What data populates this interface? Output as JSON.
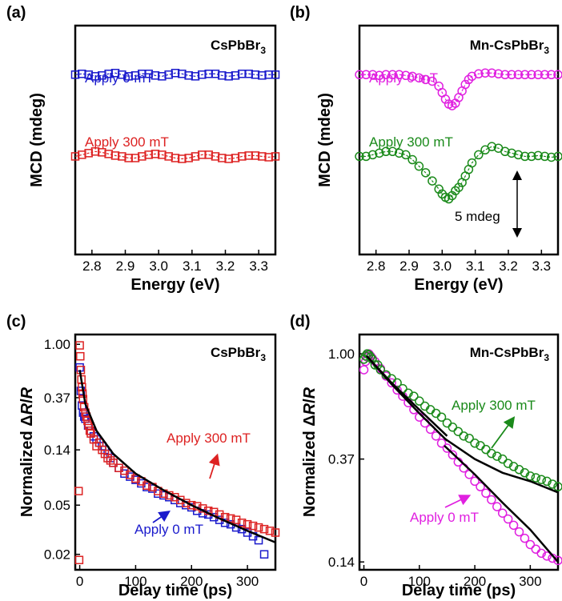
{
  "chart_data": [
    {
      "panel": "(a)",
      "type": "scatter",
      "title": "CsPbBr3",
      "xlabel": "Energy (eV)",
      "ylabel": "MCD (mdeg)",
      "xlim": [
        2.75,
        3.35
      ],
      "ylim": [
        -11,
        3
      ],
      "xticks": [
        2.8,
        2.9,
        3.0,
        3.1,
        3.2,
        3.3
      ],
      "xtick_labels": [
        "2.8",
        "2.9",
        "3.0",
        "3.1",
        "3.2",
        "3.3"
      ],
      "series": [
        {
          "name": "Apply 0 mT",
          "color": "#1a1acc",
          "marker": "square",
          "offset": 0,
          "x": [
            2.75,
            2.77,
            2.79,
            2.81,
            2.83,
            2.85,
            2.87,
            2.89,
            2.91,
            2.93,
            2.95,
            2.97,
            2.99,
            3.01,
            3.03,
            3.05,
            3.07,
            3.09,
            3.11,
            3.13,
            3.15,
            3.17,
            3.19,
            3.21,
            3.23,
            3.25,
            3.27,
            3.29,
            3.31,
            3.33,
            3.35
          ],
          "y": [
            0.0,
            0.05,
            0.0,
            -0.1,
            -0.05,
            0.05,
            0.1,
            0.0,
            -0.1,
            -0.05,
            0.05,
            0.05,
            -0.05,
            -0.1,
            0.0,
            0.1,
            0.05,
            -0.05,
            -0.1,
            0.0,
            0.05,
            0.05,
            -0.05,
            -0.1,
            -0.05,
            0.05,
            0.05,
            0.0,
            -0.05,
            0.0,
            0.0
          ]
        },
        {
          "name": "Apply 300 mT",
          "color": "#dd2222",
          "marker": "square",
          "offset": -5,
          "x": [
            2.75,
            2.77,
            2.79,
            2.81,
            2.83,
            2.85,
            2.87,
            2.89,
            2.91,
            2.93,
            2.95,
            2.97,
            2.99,
            3.01,
            3.03,
            3.05,
            3.07,
            3.09,
            3.11,
            3.13,
            3.15,
            3.17,
            3.19,
            3.21,
            3.23,
            3.25,
            3.27,
            3.29,
            3.31,
            3.33,
            3.35
          ],
          "y": [
            0.0,
            0.1,
            0.2,
            0.3,
            0.25,
            0.15,
            0.05,
            0.0,
            -0.1,
            -0.1,
            0.0,
            0.1,
            0.15,
            0.1,
            0.0,
            -0.1,
            -0.15,
            -0.1,
            0.0,
            0.1,
            0.1,
            0.0,
            -0.1,
            -0.15,
            -0.1,
            0.0,
            0.05,
            0.05,
            0.0,
            -0.05,
            0.0
          ]
        }
      ]
    },
    {
      "panel": "(b)",
      "type": "scatter",
      "title": "Mn-CsPbBr3",
      "xlabel": "Energy (eV)",
      "ylabel": "MCD (mdeg)",
      "xlim": [
        2.75,
        3.35
      ],
      "ylim": [
        -11,
        3
      ],
      "xticks": [
        2.8,
        2.9,
        3.0,
        3.1,
        3.2,
        3.3
      ],
      "xtick_labels": [
        "2.8",
        "2.9",
        "3.0",
        "3.1",
        "3.2",
        "3.3"
      ],
      "scale_bar": {
        "label": "5 mdeg",
        "x": 3.22,
        "y_from": -10.2,
        "y_to": -5.2
      },
      "series": [
        {
          "name": "Apply 0 mT",
          "color": "#e020e0",
          "marker": "circle",
          "offset": 0,
          "x": [
            2.75,
            2.77,
            2.79,
            2.81,
            2.83,
            2.85,
            2.87,
            2.89,
            2.91,
            2.93,
            2.95,
            2.97,
            2.99,
            3.0,
            3.01,
            3.02,
            3.03,
            3.04,
            3.05,
            3.06,
            3.07,
            3.08,
            3.09,
            3.11,
            3.13,
            3.15,
            3.17,
            3.19,
            3.21,
            3.23,
            3.25,
            3.27,
            3.29,
            3.31,
            3.33,
            3.35
          ],
          "y": [
            0.0,
            0.0,
            0.0,
            -0.05,
            0.0,
            0.0,
            0.0,
            -0.05,
            -0.1,
            -0.2,
            -0.3,
            -0.4,
            -0.7,
            -1.1,
            -1.5,
            -1.8,
            -1.9,
            -1.75,
            -1.4,
            -1.0,
            -0.6,
            -0.3,
            -0.1,
            0.05,
            0.1,
            0.1,
            0.05,
            0.0,
            0.0,
            0.0,
            0.0,
            0.0,
            0.0,
            0.0,
            0.0,
            0.0
          ]
        },
        {
          "name": "Apply 300 mT",
          "color": "#1a8a1a",
          "marker": "circle",
          "offset": -5,
          "x": [
            2.75,
            2.77,
            2.79,
            2.81,
            2.83,
            2.85,
            2.87,
            2.89,
            2.91,
            2.93,
            2.95,
            2.97,
            2.99,
            3.0,
            3.01,
            3.02,
            3.03,
            3.04,
            3.05,
            3.06,
            3.07,
            3.08,
            3.09,
            3.11,
            3.13,
            3.15,
            3.17,
            3.19,
            3.21,
            3.23,
            3.25,
            3.27,
            3.29,
            3.31,
            3.33,
            3.35
          ],
          "y": [
            0.0,
            0.0,
            0.1,
            0.2,
            0.3,
            0.3,
            0.2,
            0.1,
            -0.2,
            -0.6,
            -1.0,
            -1.5,
            -2.0,
            -2.3,
            -2.5,
            -2.6,
            -2.4,
            -2.1,
            -1.9,
            -1.6,
            -1.2,
            -0.8,
            -0.4,
            0.1,
            0.4,
            0.6,
            0.5,
            0.3,
            0.2,
            0.1,
            0.0,
            0.0,
            0.05,
            0.0,
            -0.05,
            0.0
          ]
        }
      ]
    },
    {
      "panel": "(c)",
      "type": "scatter",
      "title": "CsPbBr3",
      "xlabel": "Delay time (ps)",
      "ylabel": "Normalized ΔR/R",
      "yscale": "log",
      "xlim": [
        -8,
        350
      ],
      "ylim": [
        0.015,
        1.2
      ],
      "xticks": [
        0,
        100,
        200,
        300
      ],
      "xtick_labels": [
        "0",
        "100",
        "200",
        "300"
      ],
      "yticks": [
        1.0,
        0.37,
        0.14,
        0.05,
        0.02
      ],
      "ytick_labels": [
        "1.00",
        "0.37",
        "0.14",
        "0.05",
        "0.02"
      ],
      "series": [
        {
          "name": "Apply 0 mT",
          "color": "#1a1acc",
          "marker": "square",
          "x": [
            0,
            2,
            4,
            6,
            8,
            10,
            15,
            20,
            25,
            30,
            35,
            40,
            45,
            50,
            55,
            60,
            70,
            80,
            90,
            100,
            110,
            120,
            130,
            140,
            150,
            160,
            170,
            180,
            190,
            200,
            210,
            220,
            230,
            240,
            250,
            260,
            270,
            280,
            290,
            300,
            310,
            320,
            330
          ],
          "y": [
            0.65,
            0.42,
            0.32,
            0.28,
            0.26,
            0.25,
            0.22,
            0.2,
            0.18,
            0.17,
            0.16,
            0.15,
            0.14,
            0.13,
            0.12,
            0.11,
            0.1,
            0.09,
            0.085,
            0.08,
            0.075,
            0.07,
            0.068,
            0.062,
            0.06,
            0.058,
            0.055,
            0.052,
            0.05,
            0.048,
            0.045,
            0.043,
            0.042,
            0.04,
            0.038,
            0.036,
            0.035,
            0.033,
            0.032,
            0.03,
            0.028,
            0.026,
            0.02
          ]
        },
        {
          "name": "Apply 300 mT",
          "color": "#dd2222",
          "marker": "square",
          "x": [
            -2,
            -1,
            0,
            1,
            2,
            3,
            4,
            5,
            6,
            8,
            10,
            12,
            14,
            16,
            18,
            20,
            25,
            30,
            35,
            40,
            45,
            50,
            55,
            60,
            70,
            80,
            90,
            100,
            110,
            120,
            130,
            140,
            150,
            160,
            170,
            180,
            190,
            200,
            210,
            220,
            230,
            240,
            250,
            260,
            270,
            280,
            290,
            300,
            310,
            320,
            330,
            340,
            350
          ],
          "y": [
            0.065,
            0.018,
            0.98,
            0.8,
            0.62,
            0.52,
            0.45,
            0.4,
            0.36,
            0.31,
            0.28,
            0.26,
            0.24,
            0.22,
            0.2,
            0.19,
            0.17,
            0.15,
            0.16,
            0.14,
            0.13,
            0.12,
            0.115,
            0.11,
            0.1,
            0.095,
            0.088,
            0.082,
            0.078,
            0.072,
            0.07,
            0.065,
            0.062,
            0.06,
            0.058,
            0.055,
            0.052,
            0.05,
            0.049,
            0.047,
            0.045,
            0.044,
            0.042,
            0.04,
            0.039,
            0.038,
            0.036,
            0.035,
            0.034,
            0.033,
            0.032,
            0.031,
            0.03
          ]
        }
      ],
      "fit": {
        "x": [
          0,
          10,
          30,
          60,
          100,
          150,
          200,
          250,
          300,
          350
        ],
        "y": [
          0.62,
          0.33,
          0.2,
          0.13,
          0.09,
          0.066,
          0.05,
          0.039,
          0.031,
          0.025
        ]
      }
    },
    {
      "panel": "(d)",
      "type": "scatter",
      "title": "Mn-CsPbBr3",
      "xlabel": "Delay time (ps)",
      "ylabel": "Normalized ΔR/R",
      "yscale": "log",
      "xlim": [
        -8,
        350
      ],
      "ylim": [
        0.13,
        1.2
      ],
      "xticks": [
        0,
        100,
        200,
        300
      ],
      "xtick_labels": [
        "0",
        "100",
        "200",
        "300"
      ],
      "yticks": [
        1.0,
        0.37,
        0.14
      ],
      "ytick_labels": [
        "1.00",
        "0.37",
        "0.14"
      ],
      "series": [
        {
          "name": "Apply 0 mT",
          "color": "#e020e0",
          "marker": "circle",
          "x": [
            0,
            3,
            6,
            9,
            12,
            15,
            20,
            30,
            40,
            50,
            60,
            70,
            80,
            90,
            100,
            110,
            120,
            130,
            140,
            150,
            160,
            170,
            180,
            190,
            200,
            210,
            220,
            230,
            240,
            250,
            260,
            270,
            280,
            290,
            300,
            310,
            320,
            330,
            340,
            350
          ],
          "y": [
            0.86,
            0.93,
            0.97,
            1.0,
            0.98,
            0.96,
            0.93,
            0.87,
            0.81,
            0.76,
            0.71,
            0.67,
            0.63,
            0.59,
            0.55,
            0.52,
            0.49,
            0.46,
            0.43,
            0.41,
            0.385,
            0.36,
            0.34,
            0.32,
            0.3,
            0.285,
            0.268,
            0.252,
            0.236,
            0.222,
            0.21,
            0.198,
            0.186,
            0.175,
            0.165,
            0.158,
            0.152,
            0.148,
            0.145,
            0.142
          ]
        },
        {
          "name": "Apply 300 mT",
          "color": "#1a8a1a",
          "marker": "circle",
          "x": [
            0,
            3,
            6,
            9,
            12,
            15,
            20,
            25,
            30,
            40,
            50,
            60,
            70,
            80,
            90,
            100,
            110,
            120,
            130,
            140,
            150,
            160,
            170,
            180,
            190,
            200,
            210,
            220,
            230,
            240,
            250,
            260,
            270,
            280,
            290,
            300,
            310,
            320,
            330,
            340,
            350
          ],
          "y": [
            0.95,
            0.98,
            1.0,
            0.99,
            0.97,
            0.95,
            0.9,
            0.9,
            0.86,
            0.82,
            0.79,
            0.76,
            0.72,
            0.69,
            0.67,
            0.64,
            0.61,
            0.59,
            0.57,
            0.55,
            0.52,
            0.5,
            0.48,
            0.46,
            0.45,
            0.43,
            0.42,
            0.405,
            0.39,
            0.38,
            0.37,
            0.355,
            0.345,
            0.335,
            0.325,
            0.315,
            0.31,
            0.305,
            0.3,
            0.292,
            0.285
          ]
        }
      ],
      "fits": [
        {
          "x": [
            5,
            50,
            100,
            150
          ],
          "y": [
            0.98,
            0.75,
            0.57,
            0.44
          ]
        },
        {
          "x": [
            145,
            200,
            250,
            300,
            350
          ],
          "y": [
            0.45,
            0.37,
            0.325,
            0.3,
            0.27
          ]
        },
        {
          "x": [
            5,
            50,
            100,
            150
          ],
          "y": [
            0.98,
            0.76,
            0.59,
            0.46
          ]
        },
        {
          "x": [
            145,
            200,
            250,
            300,
            350
          ],
          "y": [
            0.42,
            0.32,
            0.245,
            0.19,
            0.14
          ]
        }
      ]
    }
  ],
  "labels": {
    "a": "(a)",
    "b": "(b)",
    "c": "(c)",
    "d": "(d)",
    "a_title_main": "CsPbBr",
    "a_title_sub": "3",
    "b_title_main": "Mn-CsPbBr",
    "b_title_sub": "3",
    "c_title_main": "CsPbBr",
    "c_title_sub": "3",
    "d_title_main": "Mn-CsPbBr",
    "d_title_sub": "3",
    "energy": "Energy (eV)",
    "mcd": "MCD (mdeg)",
    "delay": "Delay time (ps)",
    "norm_main": "Normalized ",
    "norm_delta": "Δ",
    "norm_r": "R",
    "norm_slash": "/",
    "norm_r2": "R",
    "a_s0": "Apply 0 mT",
    "a_s1": "Apply 300 mT",
    "b_s0": "Apply 0 mT",
    "b_s1": "Apply 300 mT",
    "c_s1": "Apply 300 mT",
    "c_s0": "Apply 0 mT",
    "d_s1": "Apply 300 mT",
    "d_s0": "Apply 0 mT",
    "scale": "5 mdeg"
  }
}
